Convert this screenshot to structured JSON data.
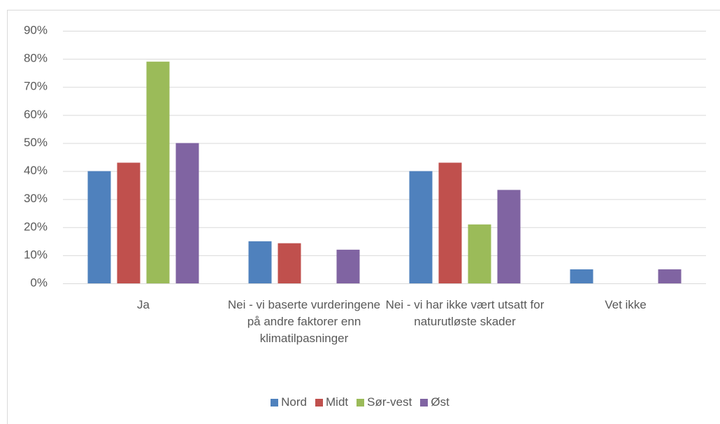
{
  "chart_data": {
    "type": "bar",
    "categories": [
      "Ja",
      "Nei - vi baserte vurderingene på andre faktorer enn klimatilpasninger",
      "Nei - vi har ikke vært utsatt for naturutløste skader",
      "Vet ikke"
    ],
    "series": [
      {
        "name": "Nord",
        "color": "#4f81bd",
        "values": [
          40,
          15,
          40,
          5
        ]
      },
      {
        "name": "Midt",
        "color": "#c0504d",
        "values": [
          43,
          14.3,
          43,
          0
        ]
      },
      {
        "name": "Sør-vest",
        "color": "#9bbb59",
        "values": [
          79,
          0,
          21,
          0
        ]
      },
      {
        "name": "Øst",
        "color": "#8064a2",
        "values": [
          50,
          12,
          33.3,
          5
        ]
      }
    ],
    "ylim": [
      0,
      90
    ],
    "yticks": [
      {
        "value": 0,
        "label": "0%"
      },
      {
        "value": 10,
        "label": "10%"
      },
      {
        "value": 20,
        "label": "20%"
      },
      {
        "value": 30,
        "label": "30%"
      },
      {
        "value": 40,
        "label": "40%"
      },
      {
        "value": 50,
        "label": "50%"
      },
      {
        "value": 60,
        "label": "60%"
      },
      {
        "value": 70,
        "label": "70%"
      },
      {
        "value": 80,
        "label": "80%"
      },
      {
        "value": 90,
        "label": "90%"
      }
    ],
    "grid": true,
    "legend": "bottom"
  }
}
